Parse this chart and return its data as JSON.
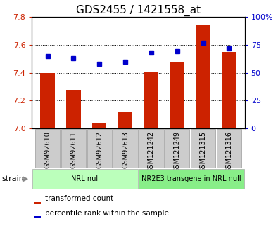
{
  "title": "GDS2455 / 1421558_at",
  "samples": [
    "GSM92610",
    "GSM92611",
    "GSM92612",
    "GSM92613",
    "GSM121242",
    "GSM121249",
    "GSM121315",
    "GSM121316"
  ],
  "bar_values": [
    7.4,
    7.27,
    7.04,
    7.12,
    7.41,
    7.48,
    7.74,
    7.55
  ],
  "percentile_values": [
    65,
    63,
    58,
    60,
    68,
    69,
    77,
    72
  ],
  "ylim_left": [
    7.0,
    7.8
  ],
  "ylim_right": [
    0,
    100
  ],
  "yticks_left": [
    7.0,
    7.2,
    7.4,
    7.6,
    7.8
  ],
  "yticks_right": [
    0,
    25,
    50,
    75,
    100
  ],
  "ytick_right_labels": [
    "0",
    "25",
    "50",
    "75",
    "100%"
  ],
  "bar_color": "#cc2200",
  "square_color": "#0000cc",
  "grid_color": "#000000",
  "bg_color": "#ffffff",
  "groups": [
    {
      "label": "NRL null",
      "start": 0,
      "end": 4,
      "color": "#bbffbb"
    },
    {
      "label": "NR2E3 transgene in NRL null",
      "start": 4,
      "end": 8,
      "color": "#88ee88"
    }
  ],
  "strain_label": "strain",
  "legend_bar_label": "transformed count",
  "legend_sq_label": "percentile rank within the sample",
  "title_fontsize": 11,
  "tick_fontsize": 7,
  "label_color_left": "#cc2200",
  "label_color_right": "#0000cc",
  "xtick_cell_color": "#cccccc",
  "xtick_cell_edge": "#999999"
}
